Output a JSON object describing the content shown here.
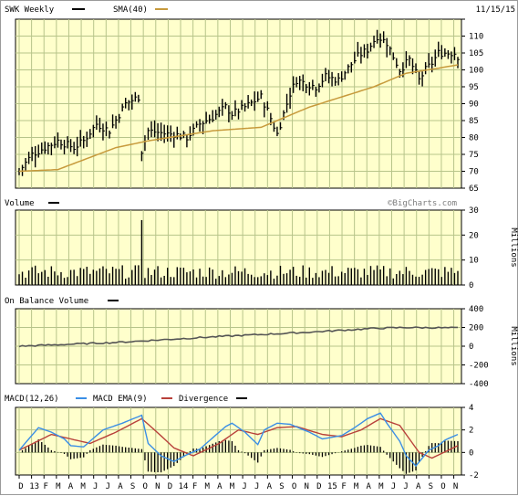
{
  "header": {
    "symbol_label": "SWK Weekly",
    "sma_label": "SMA(40)",
    "date": "11/15/15"
  },
  "watermark": "©BigCharts.com",
  "colors": {
    "plot_bg": "#ffffcc",
    "grid": "#b7c48a",
    "price_bar": "#000000",
    "sma": "#c79a3c",
    "volume_bar": "#000000",
    "obv_line": "#555555",
    "macd_line": "#3a8ee6",
    "macd_ema": "#b8413b",
    "divergence": "#000000"
  },
  "x_axis": {
    "months": [
      "D",
      "13",
      "F",
      "M",
      "A",
      "M",
      "J",
      "J",
      "A",
      "S",
      "O",
      "N",
      "D",
      "14",
      "F",
      "M",
      "A",
      "M",
      "J",
      "J",
      "A",
      "S",
      "O",
      "N",
      "D",
      "15",
      "F",
      "M",
      "A",
      "M",
      "J",
      "J",
      "A",
      "S",
      "O",
      "N"
    ]
  },
  "chart_data": [
    {
      "type": "line",
      "title": "SWK Weekly",
      "legend": [
        "SWK Weekly",
        "SMA(40)"
      ],
      "ylim": [
        65,
        115
      ],
      "yticks": [
        65,
        70,
        75,
        80,
        85,
        90,
        95,
        100,
        105,
        110,
        115
      ],
      "ytick_labels": [
        "65",
        "70",
        "75",
        "80",
        "85",
        "90",
        "95",
        "100",
        "105",
        "110",
        ""
      ],
      "series": [
        {
          "name": "SWK Weekly",
          "anchors_week": [
            0,
            4,
            8,
            12,
            17,
            20,
            24,
            28,
            33,
            37,
            38,
            40,
            46,
            48,
            52,
            56,
            60,
            64,
            66,
            70,
            75,
            77,
            80,
            84,
            86,
            92,
            95,
            99,
            105,
            108,
            111,
            114,
            118,
            121,
            124,
            126,
            128,
            130,
            135,
            136
          ],
          "anchors_close": [
            70,
            75,
            77,
            79,
            77,
            79,
            84,
            82,
            90,
            92,
            76,
            82,
            81,
            81,
            80,
            84,
            86,
            89,
            87,
            89,
            92,
            88,
            81,
            93,
            97,
            95,
            98,
            97,
            104,
            106,
            110,
            108,
            100,
            103,
            97,
            100,
            102,
            105,
            105,
            104
          ]
        },
        {
          "name": "SMA(40)",
          "anchors_week": [
            0,
            12,
            30,
            40,
            60,
            75,
            90,
            110,
            120,
            130,
            136
          ],
          "anchors_value": [
            70,
            70.5,
            77,
            79,
            82,
            83,
            89,
            95,
            99,
            100.5,
            101.5
          ]
        }
      ]
    },
    {
      "type": "bar",
      "title": "Volume",
      "ylabel": "Millions",
      "ylim": [
        0,
        30
      ],
      "yticks": [
        0,
        10,
        20,
        30
      ],
      "spikes": [
        {
          "week": 38,
          "value": 26
        }
      ],
      "typical_range": [
        2.5,
        8
      ]
    },
    {
      "type": "line",
      "title": "On Balance Volume",
      "ylabel": "Millions",
      "ylim": [
        -400,
        400
      ],
      "yticks": [
        -400,
        -200,
        0,
        200,
        400
      ],
      "series": [
        {
          "name": "On Balance Volume",
          "anchors_week": [
            0,
            30,
            60,
            90,
            110,
            120,
            136
          ],
          "anchors_value": [
            0,
            40,
            100,
            150,
            190,
            200,
            195
          ]
        }
      ]
    },
    {
      "type": "line",
      "title": "MACD(12,26)",
      "legend": [
        "MACD(12,26)",
        "MACD EMA(9)",
        "Divergence"
      ],
      "ylim": [
        -2,
        4
      ],
      "yticks": [
        -2,
        0,
        2,
        4
      ],
      "series": [
        {
          "name": "MACD(12,26)",
          "anchors_week": [
            0,
            6,
            10,
            14,
            16,
            20,
            26,
            32,
            38,
            40,
            44,
            48,
            52,
            56,
            60,
            64,
            66,
            70,
            74,
            76,
            80,
            84,
            90,
            94,
            100,
            104,
            108,
            112,
            114,
            118,
            120,
            123,
            127,
            130,
            132,
            136
          ],
          "anchors_value": [
            0.2,
            2.2,
            1.8,
            1.2,
            0.6,
            0.5,
            2.0,
            2.6,
            3.3,
            0.8,
            -0.3,
            -0.8,
            -0.2,
            0.3,
            1.3,
            2.3,
            2.6,
            1.8,
            0.7,
            2.0,
            2.6,
            2.5,
            1.8,
            1.2,
            1.5,
            2.2,
            3.0,
            3.5,
            2.6,
            1.0,
            -0.3,
            -1.2,
            0.2,
            0.6,
            1.1,
            1.6
          ]
        },
        {
          "name": "MACD EMA(9)",
          "anchors_week": [
            0,
            10,
            16,
            22,
            30,
            38,
            42,
            48,
            54,
            62,
            68,
            74,
            80,
            86,
            94,
            100,
            106,
            112,
            118,
            124,
            128,
            136
          ],
          "anchors_value": [
            0.2,
            1.6,
            1.2,
            0.8,
            1.8,
            3.0,
            2.0,
            0.4,
            -0.3,
            0.8,
            2.0,
            1.6,
            2.2,
            2.3,
            1.6,
            1.4,
            2.0,
            3.0,
            2.4,
            0.0,
            -0.5,
            0.6
          ]
        }
      ]
    }
  ]
}
